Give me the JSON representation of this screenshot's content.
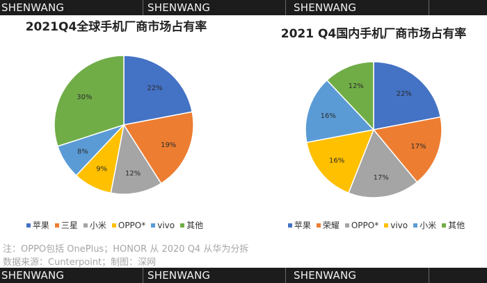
{
  "watermark": "SHENWANG",
  "footnote": {
    "line1": "注：OPPO包括 OnePlus；HONOR 从 2020  Q4 从华为分拆",
    "line2": "数据来源：Cunterpoint；制图：深网"
  },
  "chart_data": [
    {
      "type": "pie",
      "title": "2021Q4全球手机厂商市场占有率",
      "categories": [
        "苹果",
        "三星",
        "小米",
        "OPPO*",
        "vivo",
        "其他"
      ],
      "values": [
        22,
        19,
        12,
        9,
        8,
        30
      ],
      "labels": [
        "22%",
        "19%",
        "12%",
        "9%",
        "8%",
        "30%"
      ],
      "colors": [
        "#4472c4",
        "#ed7d31",
        "#a5a5a5",
        "#ffc000",
        "#5b9bd5",
        "#70ad47"
      ],
      "legend": "bottom"
    },
    {
      "type": "pie",
      "title": "2021 Q4国内手机厂商市场占有率",
      "categories": [
        "苹果",
        "荣耀",
        "OPPO*",
        "vivo",
        "小米",
        "其他"
      ],
      "values": [
        22,
        17,
        17,
        16,
        16,
        12
      ],
      "labels": [
        "22%",
        "17%",
        "17%",
        "16%",
        "16%",
        "12%"
      ],
      "colors": [
        "#4472c4",
        "#ed7d31",
        "#a5a5a5",
        "#ffc000",
        "#5b9bd5",
        "#70ad47"
      ],
      "legend": "bottom"
    }
  ]
}
